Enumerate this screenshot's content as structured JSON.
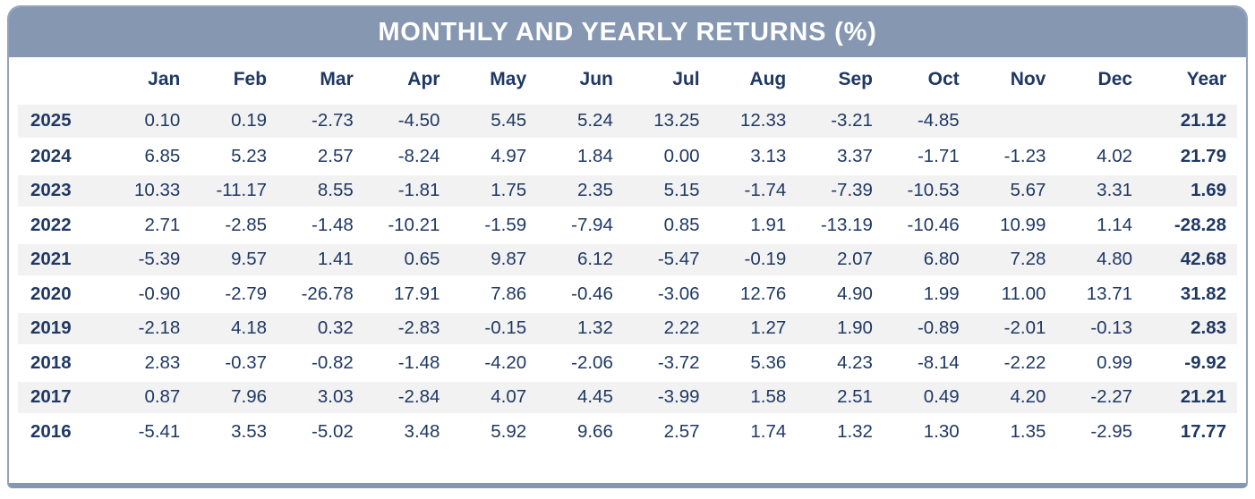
{
  "title": "MONTHLY AND YEARLY RETURNS (%)",
  "colors": {
    "band_background": "#8697b2",
    "border": "#93a3bc",
    "text_navy": "#1f3864",
    "stripe": "#f2f2f2",
    "background": "#ffffff"
  },
  "chart_data": {
    "type": "table",
    "title": "MONTHLY AND YEARLY RETURNS (%)",
    "columns": [
      "Jan",
      "Feb",
      "Mar",
      "Apr",
      "May",
      "Jun",
      "Jul",
      "Aug",
      "Sep",
      "Oct",
      "Nov",
      "Dec",
      "Year"
    ],
    "rows": [
      {
        "year": "2025",
        "values": [
          "0.10",
          "0.19",
          "-2.73",
          "-4.50",
          "5.45",
          "5.24",
          "13.25",
          "12.33",
          "-3.21",
          "-4.85",
          "",
          "",
          "21.12"
        ]
      },
      {
        "year": "2024",
        "values": [
          "6.85",
          "5.23",
          "2.57",
          "-8.24",
          "4.97",
          "1.84",
          "0.00",
          "3.13",
          "3.37",
          "-1.71",
          "-1.23",
          "4.02",
          "21.79"
        ]
      },
      {
        "year": "2023",
        "values": [
          "10.33",
          "-11.17",
          "8.55",
          "-1.81",
          "1.75",
          "2.35",
          "5.15",
          "-1.74",
          "-7.39",
          "-10.53",
          "5.67",
          "3.31",
          "1.69"
        ]
      },
      {
        "year": "2022",
        "values": [
          "2.71",
          "-2.85",
          "-1.48",
          "-10.21",
          "-1.59",
          "-7.94",
          "0.85",
          "1.91",
          "-13.19",
          "-10.46",
          "10.99",
          "1.14",
          "-28.28"
        ]
      },
      {
        "year": "2021",
        "values": [
          "-5.39",
          "9.57",
          "1.41",
          "0.65",
          "9.87",
          "6.12",
          "-5.47",
          "-0.19",
          "2.07",
          "6.80",
          "7.28",
          "4.80",
          "42.68"
        ]
      },
      {
        "year": "2020",
        "values": [
          "-0.90",
          "-2.79",
          "-26.78",
          "17.91",
          "7.86",
          "-0.46",
          "-3.06",
          "12.76",
          "4.90",
          "1.99",
          "11.00",
          "13.71",
          "31.82"
        ]
      },
      {
        "year": "2019",
        "values": [
          "-2.18",
          "4.18",
          "0.32",
          "-2.83",
          "-0.15",
          "1.32",
          "2.22",
          "1.27",
          "1.90",
          "-0.89",
          "-2.01",
          "-0.13",
          "2.83"
        ]
      },
      {
        "year": "2018",
        "values": [
          "2.83",
          "-0.37",
          "-0.82",
          "-1.48",
          "-4.20",
          "-2.06",
          "-3.72",
          "5.36",
          "4.23",
          "-8.14",
          "-2.22",
          "0.99",
          "-9.92"
        ]
      },
      {
        "year": "2017",
        "values": [
          "0.87",
          "7.96",
          "3.03",
          "-2.84",
          "4.07",
          "4.45",
          "-3.99",
          "1.58",
          "2.51",
          "0.49",
          "4.20",
          "-2.27",
          "21.21"
        ]
      },
      {
        "year": "2016",
        "values": [
          "-5.41",
          "3.53",
          "-5.02",
          "3.48",
          "5.92",
          "9.66",
          "2.57",
          "1.74",
          "1.32",
          "1.30",
          "1.35",
          "-2.95",
          "17.77"
        ]
      }
    ]
  }
}
